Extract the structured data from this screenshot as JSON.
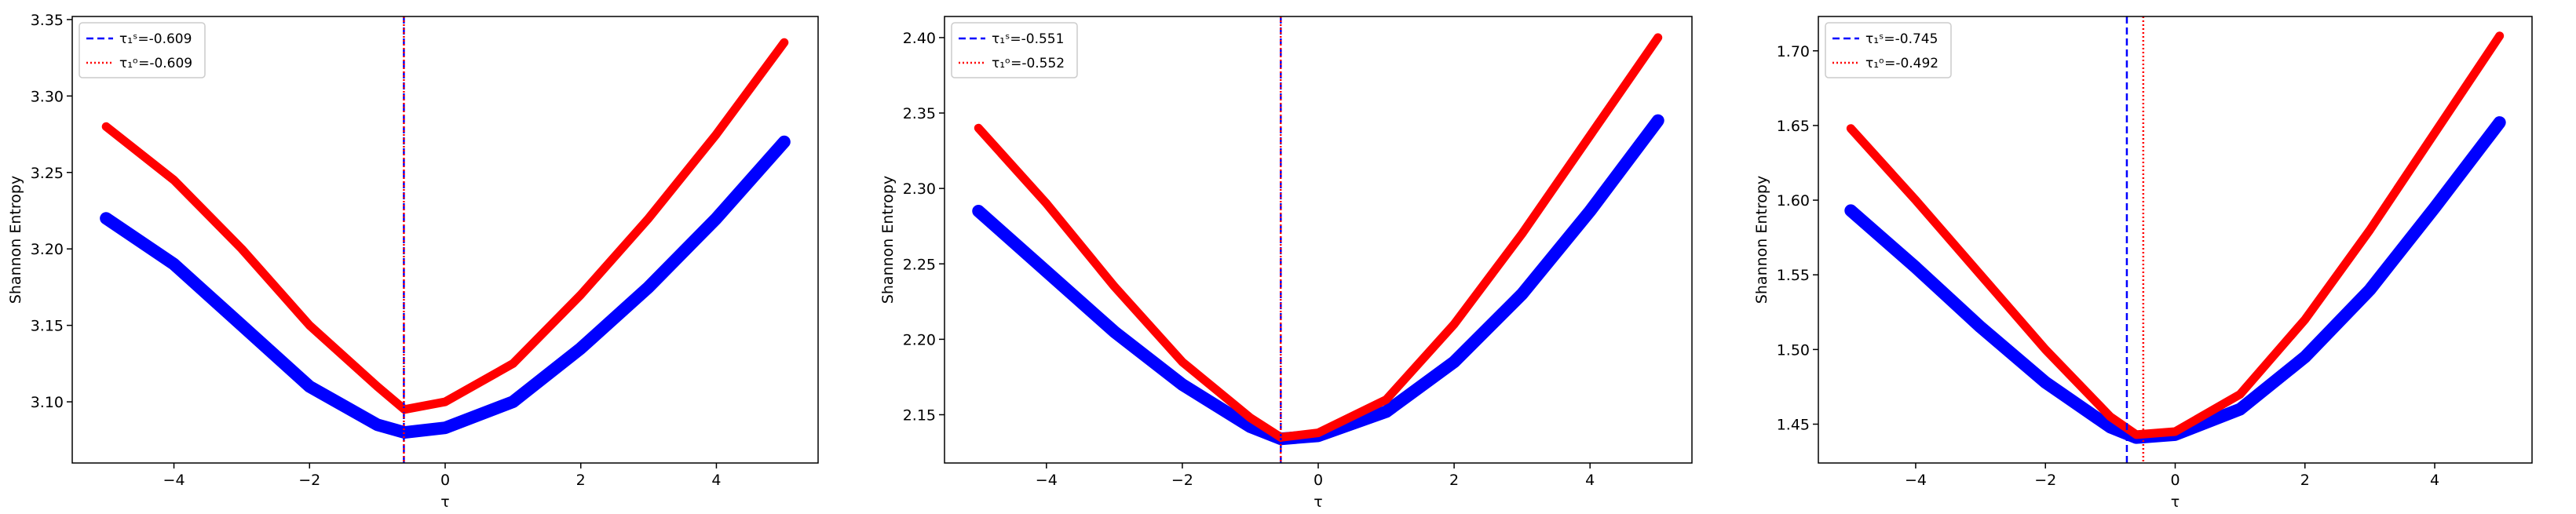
{
  "chart_data": [
    {
      "type": "line",
      "xlabel": "τ",
      "ylabel": "Shannon Entropy",
      "x": [
        -5,
        -4,
        -3,
        -2,
        -1,
        -0.6,
        0,
        1,
        2,
        3,
        4,
        5
      ],
      "xlim": [
        -5.5,
        5.5
      ],
      "ylim": [
        3.06,
        3.352
      ],
      "xticks": [
        {
          "value": -4,
          "label": "−4"
        },
        {
          "value": -2,
          "label": "−2"
        },
        0,
        2,
        4
      ],
      "yticks": [
        3.1,
        3.15,
        3.2,
        3.25,
        3.3,
        3.35
      ],
      "series": [
        {
          "color": "#0000ff",
          "values": [
            3.22,
            3.19,
            3.15,
            3.11,
            3.085,
            3.08,
            3.083,
            3.1,
            3.135,
            3.175,
            3.22,
            3.27
          ]
        },
        {
          "color": "#ff0000",
          "values": [
            3.28,
            3.245,
            3.2,
            3.15,
            3.11,
            3.095,
            3.1,
            3.125,
            3.17,
            3.22,
            3.275,
            3.335
          ]
        }
      ],
      "vlines": [
        {
          "name": "τ₁ˢ=-0.609",
          "x": -0.609,
          "color": "#0000ff",
          "style": "dashed"
        },
        {
          "name": "τ₁ᵒ=-0.609",
          "x": -0.609,
          "color": "#ff0000",
          "style": "dotted"
        }
      ]
    },
    {
      "type": "line",
      "xlabel": "τ",
      "ylabel": "Shannon Entropy",
      "x": [
        -5,
        -4,
        -3,
        -2,
        -1,
        -0.55,
        0,
        1,
        2,
        3,
        4,
        5
      ],
      "xlim": [
        -5.5,
        5.5
      ],
      "ylim": [
        2.118,
        2.414
      ],
      "xticks": [
        {
          "value": -4,
          "label": "−4"
        },
        {
          "value": -2,
          "label": "−2"
        },
        0,
        2,
        4
      ],
      "yticks": [
        2.15,
        2.2,
        2.25,
        2.3,
        2.35,
        2.4
      ],
      "series": [
        {
          "color": "#0000ff",
          "values": [
            2.285,
            2.245,
            2.205,
            2.17,
            2.142,
            2.134,
            2.136,
            2.152,
            2.185,
            2.23,
            2.285,
            2.345
          ]
        },
        {
          "color": "#ff0000",
          "values": [
            2.34,
            2.29,
            2.235,
            2.185,
            2.148,
            2.135,
            2.138,
            2.16,
            2.21,
            2.27,
            2.335,
            2.4
          ]
        }
      ],
      "vlines": [
        {
          "name": "τ₁ˢ=-0.551",
          "x": -0.551,
          "color": "#0000ff",
          "style": "dashed"
        },
        {
          "name": "τ₁ᵒ=-0.552",
          "x": -0.552,
          "color": "#ff0000",
          "style": "dotted"
        }
      ]
    },
    {
      "type": "line",
      "xlabel": "τ",
      "ylabel": "Shannon Entropy",
      "x": [
        -5,
        -4,
        -3,
        -2,
        -1,
        -0.6,
        0,
        1,
        2,
        3,
        4,
        5
      ],
      "xlim": [
        -5.5,
        5.5
      ],
      "ylim": [
        1.424,
        1.723
      ],
      "xticks": [
        {
          "value": -4,
          "label": "−4"
        },
        {
          "value": -2,
          "label": "−2"
        },
        0,
        2,
        4
      ],
      "yticks": [
        1.45,
        1.5,
        1.55,
        1.6,
        1.65,
        1.7
      ],
      "series": [
        {
          "color": "#0000ff",
          "values": [
            1.593,
            1.555,
            1.515,
            1.478,
            1.448,
            1.441,
            1.443,
            1.46,
            1.495,
            1.54,
            1.595,
            1.652
          ]
        },
        {
          "color": "#ff0000",
          "values": [
            1.648,
            1.6,
            1.55,
            1.5,
            1.455,
            1.443,
            1.445,
            1.47,
            1.52,
            1.58,
            1.645,
            1.71
          ]
        }
      ],
      "vlines": [
        {
          "name": "τ₁ˢ=-0.745",
          "x": -0.745,
          "color": "#0000ff",
          "style": "dashed"
        },
        {
          "name": "τ₁ᵒ=-0.492",
          "x": -0.492,
          "color": "#ff0000",
          "style": "dotted"
        }
      ]
    }
  ]
}
